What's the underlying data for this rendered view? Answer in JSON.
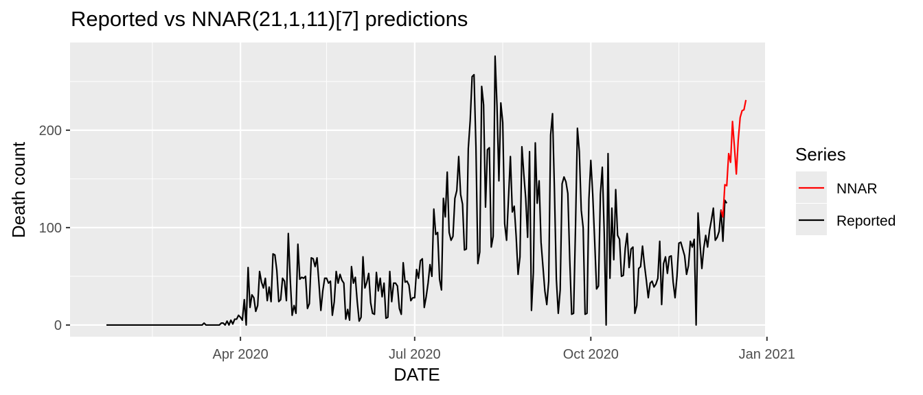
{
  "chart_data": {
    "type": "line",
    "title": "Reported vs NNAR(21,1,11)[7] predictions",
    "xlabel": "DATE",
    "ylabel": "Death count",
    "x_ticks": [
      {
        "date": "2020-04-01",
        "label": "Apr 2020"
      },
      {
        "date": "2020-07-01",
        "label": "Jul 2020"
      },
      {
        "date": "2020-10-01",
        "label": "Oct 2020"
      },
      {
        "date": "2021-01-01",
        "label": "Jan 2021"
      }
    ],
    "x_minor_ticks": [
      "2020-02-15",
      "2020-05-16",
      "2020-08-16",
      "2020-11-16"
    ],
    "y_ticks": [
      0,
      100,
      200
    ],
    "y_minor_ticks": [
      50,
      150,
      250
    ],
    "xlim": [
      "2020-01-03",
      "2020-12-31"
    ],
    "ylim": [
      -12,
      290
    ],
    "grid": true,
    "legend": {
      "title": "Series",
      "placement": "right",
      "entries": [
        "NNAR",
        "Reported"
      ]
    },
    "series": [
      {
        "name": "Reported",
        "color": "#000000",
        "start": "2020-01-22",
        "values": [
          0,
          0,
          0,
          0,
          0,
          0,
          0,
          0,
          0,
          0,
          0,
          0,
          0,
          0,
          0,
          0,
          0,
          0,
          0,
          0,
          0,
          0,
          0,
          0,
          0,
          0,
          0,
          0,
          0,
          0,
          0,
          0,
          0,
          0,
          0,
          0,
          0,
          0,
          0,
          0,
          0,
          0,
          0,
          0,
          0,
          0,
          0,
          0,
          0,
          0,
          0,
          2,
          0,
          0,
          0,
          0,
          0,
          0,
          0,
          0,
          2,
          2,
          0,
          4,
          0,
          5,
          1,
          6,
          6,
          10,
          8,
          5,
          26,
          0,
          59,
          18,
          31,
          28,
          14,
          20,
          55,
          44,
          38,
          48,
          25,
          39,
          24,
          73,
          72,
          56,
          24,
          26,
          48,
          45,
          25,
          94,
          47,
          10,
          20,
          12,
          83,
          47,
          49,
          48,
          50,
          17,
          22,
          69,
          68,
          60,
          69,
          43,
          15,
          35,
          48,
          48,
          43,
          45,
          10,
          24,
          55,
          43,
          52,
          46,
          43,
          6,
          16,
          5,
          60,
          43,
          49,
          24,
          4,
          8,
          70,
          38,
          44,
          53,
          23,
          12,
          11,
          54,
          35,
          48,
          29,
          43,
          7,
          8,
          55,
          24,
          43,
          43,
          40,
          17,
          11,
          64,
          44,
          45,
          41,
          25,
          28,
          28,
          57,
          48,
          66,
          68,
          18,
          29,
          43,
          62,
          50,
          119,
          93,
          95,
          47,
          36,
          130,
          111,
          157,
          95,
          87,
          91,
          130,
          138,
          173,
          134,
          124,
          77,
          78,
          181,
          210,
          255,
          257,
          183,
          63,
          75,
          245,
          226,
          121,
          180,
          182,
          80,
          91,
          276,
          225,
          148,
          228,
          208,
          104,
          87,
          130,
          173,
          116,
          122,
          91,
          52,
          70,
          183,
          155,
          130,
          90,
          178,
          15,
          54,
          187,
          125,
          148,
          85,
          60,
          35,
          21,
          45,
          195,
          217,
          139,
          47,
          12,
          36,
          145,
          152,
          147,
          135,
          67,
          11,
          12,
          100,
          202,
          178,
          118,
          100,
          11,
          12,
          129,
          169,
          134,
          87,
          37,
          40,
          134,
          162,
          95,
          0,
          176,
          48,
          120,
          67,
          139,
          92,
          88,
          50,
          51,
          79,
          94,
          59,
          78,
          80,
          12,
          20,
          58,
          60,
          81,
          62,
          46,
          28,
          43,
          45,
          39,
          42,
          48,
          86,
          21,
          63,
          70,
          53,
          70,
          71,
          44,
          28,
          50,
          84,
          85,
          78,
          71,
          52,
          61,
          86,
          80,
          88,
          0,
          115,
          84,
          58,
          79,
          92,
          80,
          97,
          108,
          120,
          87,
          90,
          96,
          118,
          86,
          128,
          125
        ],
        "smoothing_note": null
      },
      {
        "name": "NNAR",
        "color": "#ff0000",
        "start": "2020-12-08",
        "values": [
          118,
          111,
          144,
          143,
          176,
          167,
          209,
          183,
          155,
          190,
          213,
          220,
          221,
          231
        ]
      }
    ]
  }
}
